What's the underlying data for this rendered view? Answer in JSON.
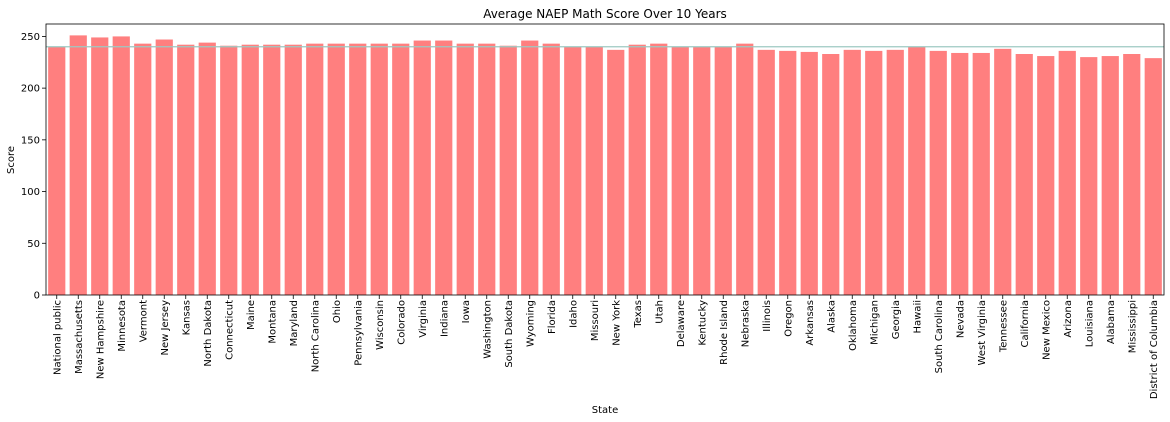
{
  "chart_data": {
    "type": "bar",
    "title": "Average NAEP Math Score Over 10 Years",
    "xlabel": "State",
    "ylabel": "Score",
    "ylim": [
      0,
      262
    ],
    "yticks": [
      0,
      50,
      100,
      150,
      200,
      250
    ],
    "bar_color": "#ff7f7f",
    "reference_line": {
      "value": 240,
      "color": "#9ec9c2"
    },
    "grid": false,
    "categories": [
      "National public",
      "Massachusetts",
      "New Hampshire",
      "Minnesota",
      "Vermont",
      "New Jersey",
      "Kansas",
      "North Dakota",
      "Connecticut",
      "Maine",
      "Montana",
      "Maryland",
      "North Carolina",
      "Ohio",
      "Pennsylvania",
      "Wisconsin",
      "Colorado",
      "Virginia",
      "Indiana",
      "Iowa",
      "Washington",
      "South Dakota",
      "Wyoming",
      "Florida",
      "Idaho",
      "Missouri",
      "New York",
      "Texas",
      "Utah",
      "Delaware",
      "Kentucky",
      "Rhode Island",
      "Nebraska",
      "Illinois",
      "Oregon",
      "Arkansas",
      "Alaska",
      "Oklahoma",
      "Michigan",
      "Georgia",
      "Hawaii",
      "South Carolina",
      "Nevada",
      "West Virginia",
      "Tennessee",
      "California",
      "New Mexico",
      "Arizona",
      "Louisiana",
      "Alabama",
      "Mississippi",
      "District of Columbia"
    ],
    "values": [
      240,
      251,
      249,
      250,
      243,
      247,
      242,
      244,
      241,
      242,
      242,
      242,
      243,
      243,
      243,
      243,
      243,
      246,
      246,
      243,
      243,
      241,
      246,
      243,
      240,
      240,
      237,
      242,
      243,
      240,
      240,
      240,
      243,
      237,
      236,
      235,
      233,
      237,
      236,
      237,
      240,
      236,
      234,
      234,
      238,
      233,
      231,
      236,
      230,
      231,
      233,
      229
    ]
  }
}
